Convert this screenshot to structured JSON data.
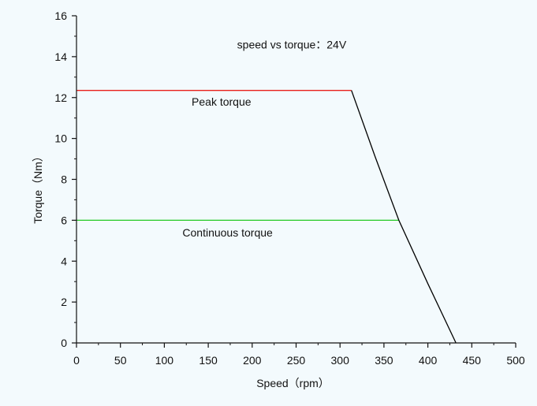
{
  "chart_data": {
    "type": "line",
    "title": "",
    "xlabel": "Speed（rpm）",
    "ylabel": "Torque（Nm）",
    "xlim": [
      0,
      500
    ],
    "ylim": [
      0,
      16
    ],
    "xticks": [
      0,
      50,
      100,
      150,
      200,
      250,
      300,
      350,
      400,
      450,
      500
    ],
    "yticks": [
      0,
      2,
      4,
      6,
      8,
      10,
      12,
      14,
      16
    ],
    "grid": false,
    "legend": "none",
    "annotations": [
      {
        "text": "speed vs torque：24V",
        "x": 245,
        "y": 14.4
      },
      {
        "text": "Peak torque",
        "x": 165,
        "y": 11.6
      },
      {
        "text": "Continuous torque",
        "x": 172,
        "y": 5.2
      }
    ],
    "series": [
      {
        "color": "#e8201a",
        "x": [
          0,
          313
        ],
        "y": [
          12.35,
          12.35
        ]
      },
      {
        "color": "#22c922",
        "x": [
          0,
          367
        ],
        "y": [
          6.0,
          6.0
        ]
      },
      {
        "color": "#000000",
        "x": [
          313,
          340,
          367,
          400,
          432
        ],
        "y": [
          12.35,
          9.1,
          6.0,
          2.9,
          0
        ]
      }
    ]
  }
}
